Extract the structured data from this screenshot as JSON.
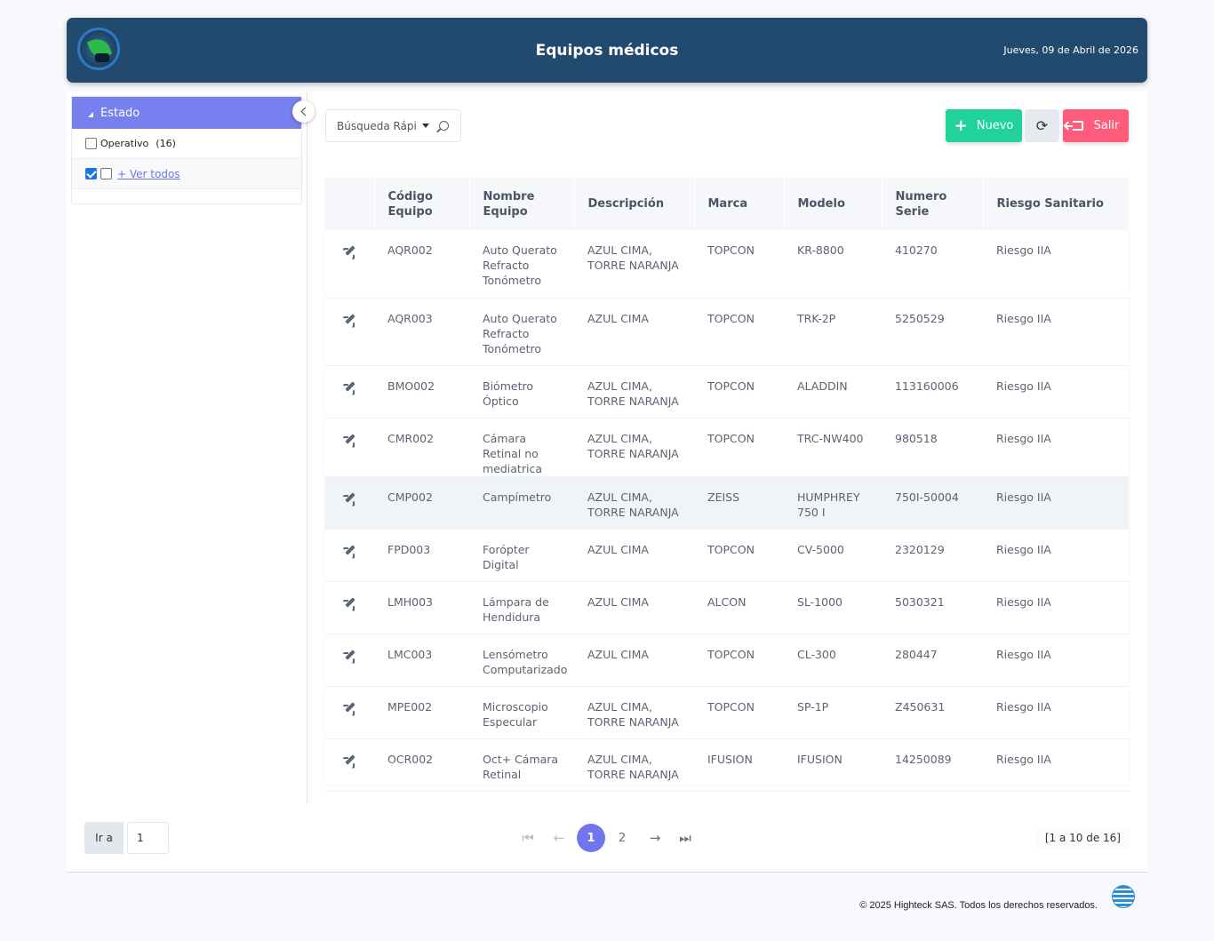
{
  "header": {
    "title": "Equipos médicos",
    "date": "Jueves, 09 de Abril de 2026",
    "logo_icon": "clinic-logo"
  },
  "sidebar": {
    "filter_title": "Estado",
    "options": [
      {
        "label": "Operativo",
        "count": "(16)",
        "checked": false
      }
    ],
    "show_all": "+ Ver todos"
  },
  "toolbar": {
    "search_placeholder": "Búsqueda Rápida",
    "new_label": "Nuevo",
    "refresh_icon": "refresh-icon",
    "exit_label": "Salir"
  },
  "table": {
    "headers": [
      "Código Equipo",
      "Nombre Equipo",
      "Descripción",
      "Marca",
      "Modelo",
      "Numero Serie",
      "Riesgo Sanitario"
    ],
    "rows": [
      [
        "AQR002",
        "Auto Querato Refracto Tonómetro",
        "AZUL CIMA, TORRE NARANJA",
        "TOPCON",
        "KR-8800",
        "410270",
        "Riesgo IIA"
      ],
      [
        "AQR003",
        "Auto Querato Refracto Tonómetro",
        "AZUL CIMA",
        "TOPCON",
        "TRK-2P",
        "5250529",
        "Riesgo IIA"
      ],
      [
        "BMO002",
        "Biómetro Óptico",
        "AZUL CIMA, TORRE NARANJA",
        "TOPCON",
        "ALADDIN",
        "113160006",
        "Riesgo IIA"
      ],
      [
        "CMR002",
        "Cámara Retinal no mediatrica",
        "AZUL CIMA, TORRE NARANJA",
        "TOPCON",
        "TRC-NW400",
        "980518",
        "Riesgo IIA"
      ],
      [
        "CMP002",
        "Campímetro",
        "AZUL CIMA, TORRE NARANJA",
        "ZEISS",
        "HUMPHREY 750 I",
        "750I-50004",
        "Riesgo IIA"
      ],
      [
        "FPD003",
        "Forópter Digital",
        "AZUL CIMA",
        "TOPCON",
        "CV-5000",
        "2320129",
        "Riesgo IIA"
      ],
      [
        "LMH003",
        "Lámpara de Hendidura",
        "AZUL CIMA",
        "ALCON",
        "SL-1000",
        "5030321",
        "Riesgo IIA"
      ],
      [
        "LMC003",
        "Lensómetro Computarizado",
        "AZUL CIMA",
        "TOPCON",
        "CL-300",
        "280447",
        "Riesgo IIA"
      ],
      [
        "MPE002",
        "Microscopio Especular",
        "AZUL CIMA, TORRE NARANJA",
        "TOPCON",
        "SP-1P",
        "Z450631",
        "Riesgo IIA"
      ],
      [
        "OCR002",
        "Oct+ Cámara Retinal",
        "AZUL CIMA, TORRE NARANJA",
        "IFUSION",
        "IFUSION",
        "14250089",
        "Riesgo IIA"
      ]
    ],
    "highlighted_row": 4
  },
  "pager": {
    "goto_label": "Ir a",
    "goto_value": "1",
    "pages": [
      "1",
      "2"
    ],
    "current_page": "1",
    "range_text": "[1 a 10 de 16]"
  },
  "footer": {
    "copyright": "© 2025 Highteck SAS. Todos los derechos reservados.",
    "logo_icon": "globe-logo"
  },
  "colors": {
    "header_bg": "#224a6e",
    "filter_head": "#7680ef",
    "new_button": "#21d39b",
    "exit_button": "#ff5c7c",
    "active_page": "#7077ee"
  }
}
